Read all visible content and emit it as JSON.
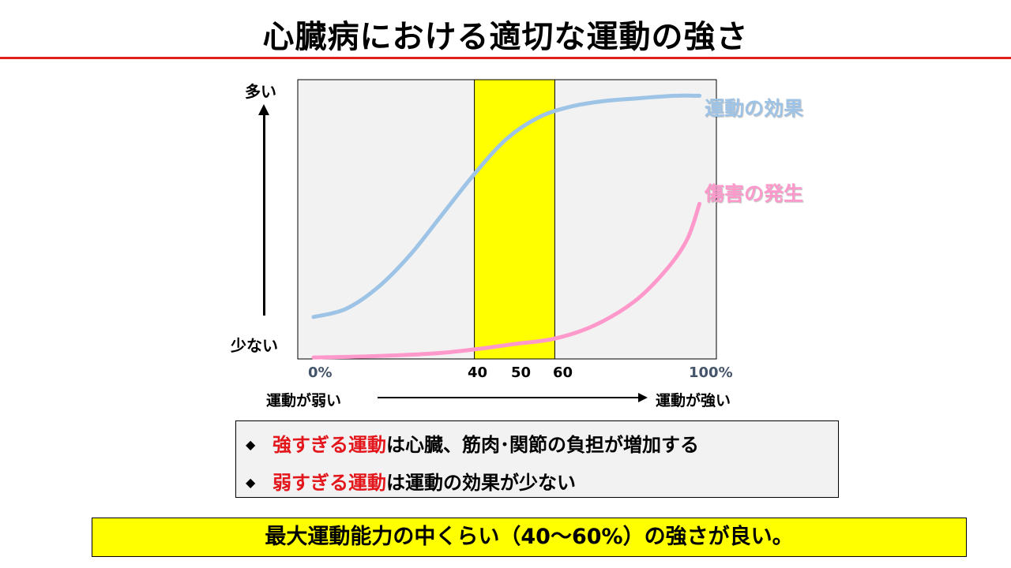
{
  "title": "心臓病における適切な運動の強さ",
  "y_axis": {
    "top_label": "多い",
    "bottom_label": "少ない"
  },
  "x_axis": {
    "ticks": [
      "0%",
      "40",
      "50",
      "60",
      "100%"
    ],
    "left_caption": "運動が弱い",
    "right_caption": "運動が強い"
  },
  "chart_data": {
    "type": "line",
    "x_range": [
      0,
      100
    ],
    "highlight_band": {
      "from": 40,
      "to": 60,
      "color": "#ffff00"
    },
    "plot_background": "#f2f2f2",
    "series": [
      {
        "name": "運動の効果",
        "color": "#9dc3e6",
        "points": [
          [
            0,
            17
          ],
          [
            8,
            20
          ],
          [
            16,
            28
          ],
          [
            24,
            40
          ],
          [
            32,
            55
          ],
          [
            40,
            70
          ],
          [
            48,
            83
          ],
          [
            56,
            91
          ],
          [
            64,
            95
          ],
          [
            72,
            97
          ],
          [
            80,
            98
          ],
          [
            90,
            99
          ],
          [
            96,
            99
          ]
        ]
      },
      {
        "name": "傷害の発生",
        "color": "#ff99cc",
        "points": [
          [
            0,
            2
          ],
          [
            15,
            2.5
          ],
          [
            30,
            3.5
          ],
          [
            40,
            5
          ],
          [
            50,
            7
          ],
          [
            60,
            9
          ],
          [
            70,
            14
          ],
          [
            80,
            23
          ],
          [
            88,
            35
          ],
          [
            93,
            46
          ],
          [
            96,
            59
          ]
        ]
      }
    ]
  },
  "notes": [
    {
      "highlight": "強すぎる運動",
      "rest": "は心臓、筋肉･関節の負担が増加する"
    },
    {
      "highlight": "弱すぎる運動",
      "rest": "は運動の効果が少ない"
    }
  ],
  "conclusion": "最大運動能力の中くらい（40～60%）の強さが良い。"
}
